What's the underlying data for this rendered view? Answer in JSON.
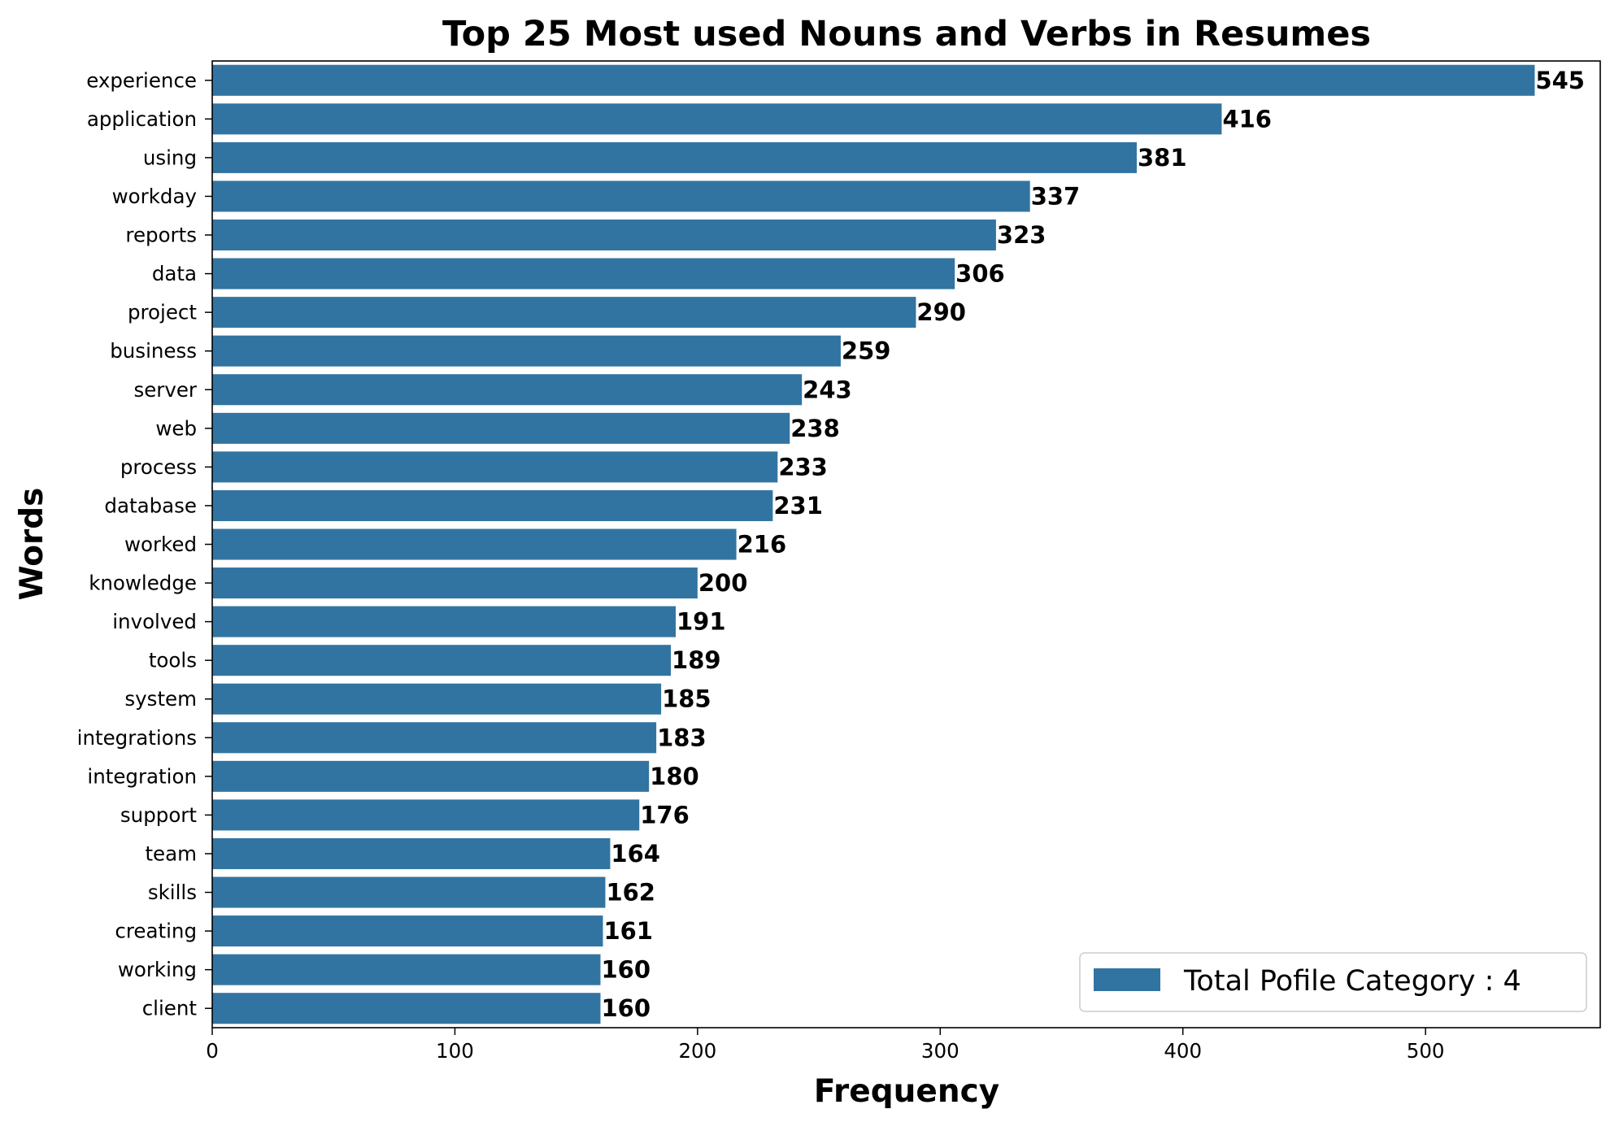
{
  "chart_data": {
    "type": "bar",
    "orientation": "horizontal",
    "title": "Top 25 Most used Nouns and Verbs in Resumes",
    "xlabel": "Frequency",
    "ylabel": "Words",
    "categories": [
      "experience",
      "application",
      "using",
      "workday",
      "reports",
      "data",
      "project",
      "business",
      "server",
      "web",
      "process",
      "database",
      "worked",
      "knowledge",
      "involved",
      "tools",
      "system",
      "integrations",
      "integration",
      "support",
      "team",
      "skills",
      "creating",
      "working",
      "client"
    ],
    "values": [
      545,
      416,
      381,
      337,
      323,
      306,
      290,
      259,
      243,
      238,
      233,
      231,
      216,
      200,
      191,
      189,
      185,
      183,
      180,
      176,
      164,
      162,
      161,
      160,
      160
    ],
    "xlim": [
      0,
      572
    ],
    "xticks": [
      0,
      100,
      200,
      300,
      400,
      500
    ],
    "grid": false,
    "bar_color": "#3274a1",
    "series": [
      {
        "name": "Total Pofile Category : 4",
        "color": "#3274a1"
      }
    ],
    "legend": {
      "label": "Total Pofile Category : 4",
      "position": "lower-right"
    }
  }
}
